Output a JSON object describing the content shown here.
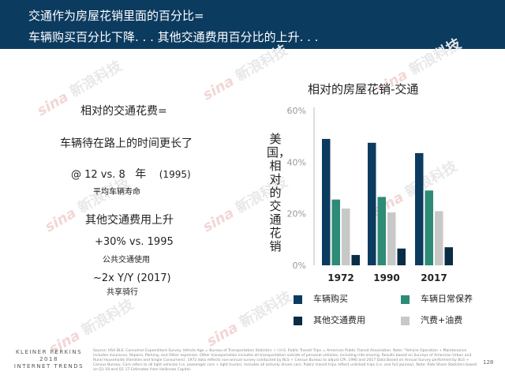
{
  "header": {
    "line1": "交通作为房屋花销里面的百分比=",
    "line2": "车辆购买百分比下降. . . 其他交通费用百分比的上升. . ."
  },
  "left": {
    "heading": "相对的交通花费=",
    "sub": "车辆待在路上的时间更长了",
    "stat1_value": "@ 12 vs. 8",
    "stat1_unit": "年",
    "stat1_year": "(1995)",
    "stat1_caption": "平均车辆寿命",
    "other_heading": "其他交通费用上升",
    "stat2_value": "+30% vs. 1995",
    "stat2_caption": "公共交通使用",
    "stat3_value": "~2x Y/Y (2017)",
    "stat3_caption": "共享骑行"
  },
  "watermark": {
    "text": "新浪科技",
    "logo": "sina"
  },
  "chart_data": {
    "type": "bar",
    "title": "相对的房屋花销-交通",
    "ylabel": "美国，相对的交通花销",
    "xlabel": "",
    "categories": [
      "1972",
      "1990",
      "2017"
    ],
    "ylim": [
      0,
      60
    ],
    "yticks": [
      "0%",
      "20%",
      "40%",
      "60%"
    ],
    "grid": false,
    "legend_position": "bottom",
    "series": [
      {
        "name": "车辆购买",
        "color": "#0c3b60",
        "values": [
          49,
          47.5,
          43.5
        ]
      },
      {
        "name": "车辆日常保养",
        "color": "#2e8b76",
        "values": [
          25.5,
          26.5,
          29
        ]
      },
      {
        "name": "汽费+油费",
        "color": "#c8c8c8",
        "values": [
          22,
          20.5,
          21
        ]
      },
      {
        "name": "其他交通费用",
        "color": "#0a2c44",
        "values": [
          4,
          6.5,
          7
        ]
      }
    ]
  },
  "legend": {
    "items": [
      {
        "name": "车辆购买",
        "color": "#0c3b60"
      },
      {
        "name": "车辆日常保养",
        "color": "#2e8b76"
      },
      {
        "name": "其他交通费用",
        "color": "#0a2c44"
      },
      {
        "name": "汽费+油费",
        "color": "#c8c8c8"
      }
    ]
  },
  "footer": {
    "logo_line1": "KLEINER PERKINS",
    "logo_line2": "2018",
    "logo_line3": "INTERNET TRENDS",
    "source": "Source: USA BLS. Consumer Expenditure Survey. Vehicle Age = Bureau of Transportation Statistics + I.H.S. Public Transit Trips = American Public Transit Association. Note: \"Vehicle Operation + Maintenance includes insurance, Repairs, Parking, and Other expenses. Other transportation includes all transportation outside of personal vehicles, including ride-sharing. Results based on Surveys of American Urban and Rural Households (Families and Single Consumers). 1972 data reflects non-annual survey conducted by BLS + Census Bureau to adjust CPI. 1990 and 2017 Data Based on Annual Survey performed by BLS + Census Bureau. Cars refers to all light vehicles (i.e. passenger cars + light trucks). Includes all actively driven cars. Public transit trips reflect unlinked trips (i.e. one full journey). Note: Ride Share Statistics based on Q1 18 and Q1 17 Estimates from Hollinsee Capital.",
    "page": "128"
  }
}
